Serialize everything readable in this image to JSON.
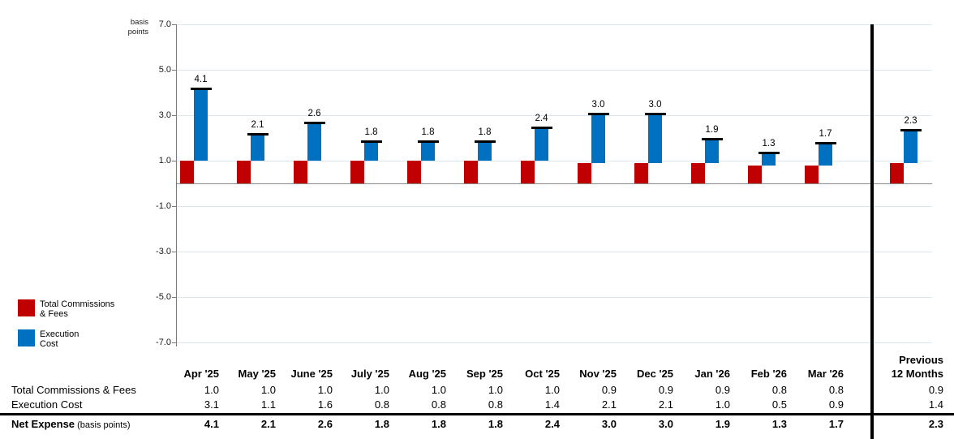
{
  "colors": {
    "commissions_red": "#c00000",
    "execution_blue": "#0070c0",
    "gridline": "#dde7f2",
    "zero_line": "#8a8a8a",
    "axis_line": "#7a7a7a",
    "divider": "#000000",
    "total_marker": "#000000"
  },
  "axis": {
    "unit_label_line1": "basis",
    "unit_label_line2": "points",
    "tick_values": [
      7,
      5,
      3,
      1,
      -1,
      -3,
      -5,
      -7
    ],
    "tick_labels": [
      "7.0",
      "5.0",
      "3.0",
      "1.0",
      "-1.0",
      "-3.0",
      "-5.0",
      "-7.0"
    ]
  },
  "legend": {
    "items": [
      {
        "swatch_color": "#c00000",
        "lines": [
          "Total Commissions",
          "& Fees"
        ]
      },
      {
        "swatch_color": "#0070c0",
        "lines": [
          "Execution",
          "Cost"
        ]
      }
    ]
  },
  "chart_data": {
    "type": "bar",
    "subtype": "stacked-offset-waterfall-with-total-markers",
    "title": "",
    "ylabel": "basis points",
    "ylim": [
      -7.0,
      7.0
    ],
    "ytick_step": 2.0,
    "grid": true,
    "legend_position": "bottom-left",
    "categories": [
      "Apr '25",
      "May '25",
      "June '25",
      "July '25",
      "Aug '25",
      "Sep '25",
      "Oct '25",
      "Nov '25",
      "Dec '25",
      "Jan '26",
      "Feb '26",
      "Mar '26"
    ],
    "summary_category": "Previous 12 Months",
    "series": [
      {
        "name": "Total Commissions & Fees",
        "color": "#c00000",
        "values": [
          1.0,
          1.0,
          1.0,
          1.0,
          1.0,
          1.0,
          1.0,
          0.9,
          0.9,
          0.9,
          0.8,
          0.8
        ],
        "summary_value": 0.9
      },
      {
        "name": "Execution Cost",
        "color": "#0070c0",
        "values": [
          3.1,
          1.1,
          1.6,
          0.8,
          0.8,
          0.8,
          1.4,
          2.1,
          2.1,
          1.0,
          0.5,
          0.9
        ],
        "summary_value": 1.4
      }
    ],
    "totals": {
      "name": "Net Expense",
      "values": [
        4.1,
        2.1,
        2.6,
        1.8,
        1.8,
        1.8,
        2.4,
        3.0,
        3.0,
        1.9,
        1.3,
        1.7
      ],
      "summary_value": 2.3,
      "data_labels_shown": true
    }
  },
  "table": {
    "column_headers": [
      "Apr '25",
      "May '25",
      "June '25",
      "July '25",
      "Aug '25",
      "Sep '25",
      "Oct '25",
      "Nov '25",
      "Dec '25",
      "Jan '26",
      "Feb '26",
      "Mar '26"
    ],
    "summary_header_lines": [
      "Previous",
      "12 Months"
    ],
    "rows": [
      {
        "label": "Net Expense",
        "hidden": true
      },
      {
        "label": "Total Commissions & Fees",
        "bold": false,
        "values": [
          "1.0",
          "1.0",
          "1.0",
          "1.0",
          "1.0",
          "1.0",
          "1.0",
          "0.9",
          "0.9",
          "0.9",
          "0.8",
          "0.8"
        ],
        "summary": "0.9"
      },
      {
        "label": "Execution Cost",
        "bold": false,
        "values": [
          "3.1",
          "1.1",
          "1.6",
          "0.8",
          "0.8",
          "0.8",
          "1.4",
          "2.1",
          "2.1",
          "1.0",
          "0.5",
          "0.9"
        ],
        "summary": "1.4"
      },
      {
        "label": "Net Expense",
        "label_suffix": " (basis points)",
        "bold": true,
        "values": [
          "4.1",
          "2.1",
          "2.6",
          "1.8",
          "1.8",
          "1.8",
          "2.4",
          "3.0",
          "3.0",
          "1.9",
          "1.3",
          "1.7"
        ],
        "summary": "2.3"
      }
    ]
  }
}
